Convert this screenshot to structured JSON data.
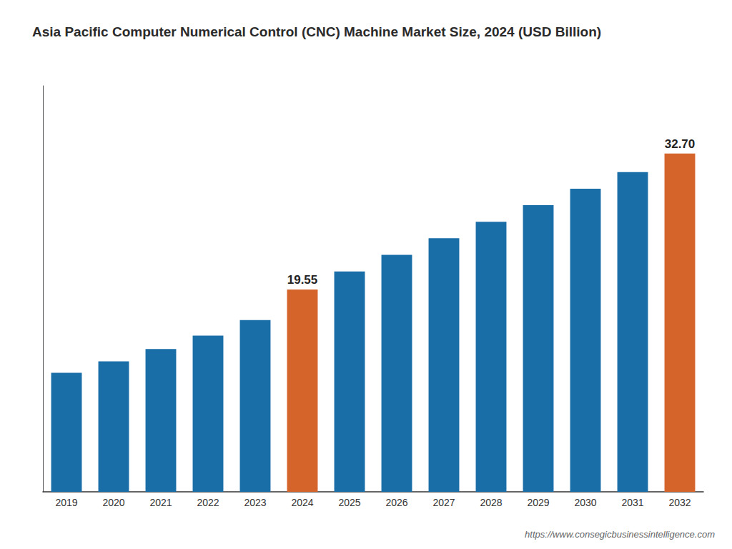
{
  "chart_data": {
    "type": "bar",
    "title": "Asia Pacific Computer Numerical Control (CNC) Machine Market Size, 2024 (USD Billion)",
    "categories": [
      "2019",
      "2020",
      "2021",
      "2022",
      "2023",
      "2024",
      "2025",
      "2026",
      "2027",
      "2028",
      "2029",
      "2030",
      "2031",
      "2032"
    ],
    "values": [
      11.5,
      12.6,
      13.8,
      15.1,
      16.6,
      19.55,
      21.3,
      22.9,
      24.5,
      26.1,
      27.7,
      29.3,
      30.9,
      32.7
    ],
    "value_labels": [
      null,
      null,
      null,
      null,
      null,
      "19.55",
      null,
      null,
      null,
      null,
      null,
      null,
      null,
      "32.70"
    ],
    "colors": [
      "#1a6ea8",
      "#1a6ea8",
      "#1a6ea8",
      "#1a6ea8",
      "#1a6ea8",
      "#d4642a",
      "#1a6ea8",
      "#1a6ea8",
      "#1a6ea8",
      "#1a6ea8",
      "#1a6ea8",
      "#1a6ea8",
      "#1a6ea8",
      "#d4642a"
    ],
    "ylim": [
      0,
      39.24
    ],
    "tick_labels": "x",
    "grid": false,
    "annotations": [
      "https://www.consegicbusinessintelligence.com"
    ]
  }
}
